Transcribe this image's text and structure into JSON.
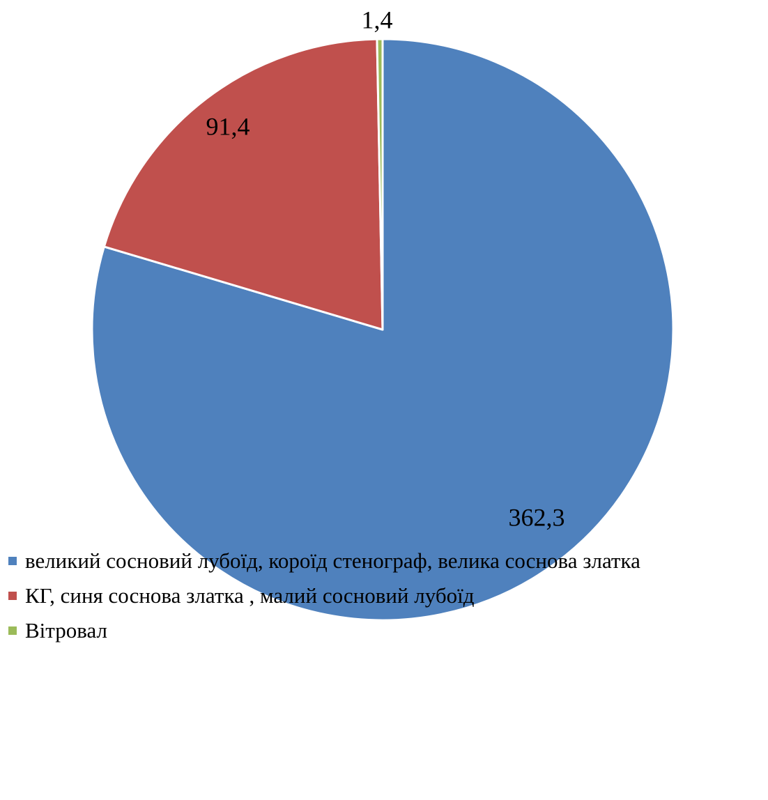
{
  "chart_data": {
    "type": "pie",
    "categories": [
      "великий сосновий лубоїд, короїд стенограф, велика соснова златка",
      "КГ, синя соснова златка , малий сосновий лубоїд",
      "Вітровал"
    ],
    "values": [
      362.3,
      91.4,
      1.4
    ],
    "data_labels": [
      "362,3",
      "91,4",
      "1,4"
    ],
    "colors": [
      "#4F81BD",
      "#C0504D",
      "#9BBB59"
    ],
    "legend_position": "bottom-left"
  }
}
